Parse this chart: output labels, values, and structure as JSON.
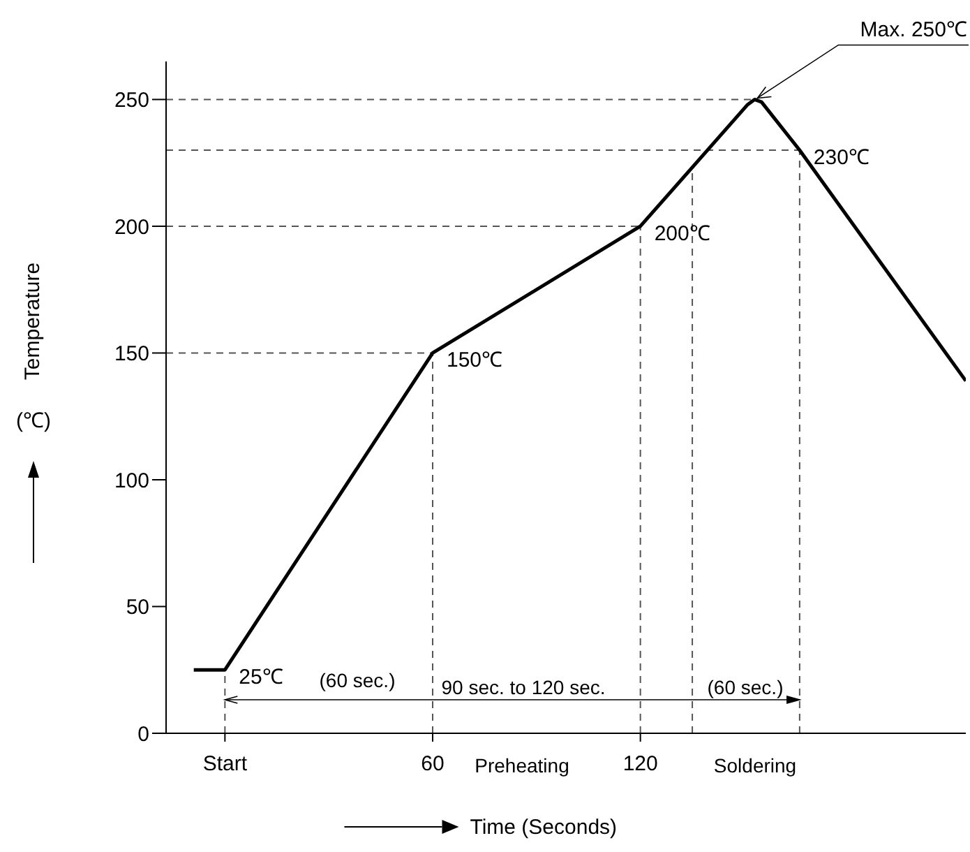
{
  "chart_data": {
    "type": "line",
    "xlabel": "Time (Seconds)",
    "ylabel": "Temperature (℃)",
    "x": [
      -9,
      0,
      60,
      120,
      151,
      153,
      155,
      166,
      214
    ],
    "series": [
      {
        "color": "#000000",
        "values": [
          25,
          25,
          150,
          200,
          248,
          250,
          249,
          230,
          139
        ]
      }
    ],
    "xlim": [
      -17,
      214
    ],
    "ylim": [
      0,
      265
    ],
    "xticks": [
      {
        "value": 0,
        "label": "Start"
      },
      60,
      120
    ],
    "yticks": [
      0,
      50,
      100,
      150,
      200,
      250
    ],
    "grid": false,
    "marker": "none",
    "line_style": "solid",
    "ref_lines": [
      {
        "axis": "y",
        "value": 150,
        "color": "#555555",
        "line_style": "dashed"
      },
      {
        "axis": "y",
        "value": 200,
        "color": "#555555",
        "line_style": "dashed"
      },
      {
        "axis": "y",
        "value": 230,
        "color": "#555555",
        "line_style": "dashed"
      },
      {
        "axis": "y",
        "value": 250,
        "color": "#555555",
        "line_style": "dashed"
      },
      {
        "axis": "x",
        "value": 0,
        "color": "#555555",
        "line_style": "dashed"
      },
      {
        "axis": "x",
        "value": 60,
        "color": "#555555",
        "line_style": "dashed"
      },
      {
        "axis": "x",
        "value": 120,
        "color": "#555555",
        "line_style": "dashed"
      },
      {
        "axis": "x",
        "value": 135,
        "color": "#555555",
        "line_style": "dashed"
      },
      {
        "axis": "x",
        "value": 166,
        "color": "#555555",
        "line_style": "dashed"
      }
    ],
    "annotations": [
      {
        "text": "25℃",
        "x": 0,
        "y": 25
      },
      {
        "text": "150℃",
        "x": 60,
        "y": 150
      },
      {
        "text": "200℃",
        "x": 120,
        "y": 200
      },
      {
        "text": "230℃",
        "x": 166,
        "y": 230
      },
      {
        "text": "Max. 250℃",
        "x": 153,
        "y": 250
      },
      "(60 sec.)",
      "90 sec. to 120 sec.",
      "(60 sec.)",
      "Preheating",
      "Soldering"
    ]
  }
}
